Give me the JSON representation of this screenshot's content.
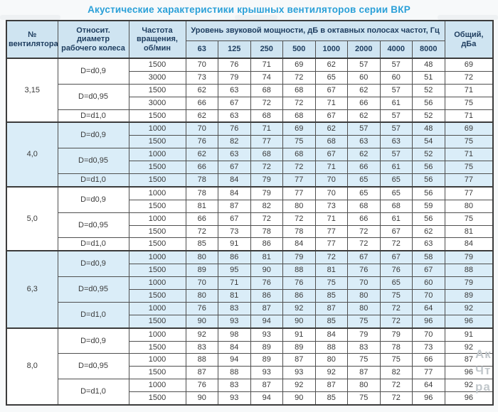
{
  "title": "Акустические характеристики крышных вентиляторов серии ВКР",
  "colors": {
    "title": "#2aa0d8",
    "header_bg": "#cfe4f1",
    "header_text": "#1d3c5e",
    "row_shaded_bg": "#daedf8",
    "row_bg": "#ffffff",
    "border": "#4f4f4f",
    "outer_border": "#3b3b3b",
    "text": "#3a3a3a",
    "page_bg": "#f7f9fa",
    "watermark": "#c2c8cc"
  },
  "table": {
    "headers": {
      "fan": "№ вентилятора",
      "diameter": "Относит. диаметр рабочего колеса",
      "speed": "Частота вращения, об/мин",
      "spl_group": "Уровень звуковой мощности, дБ в октавных полосах частот, Гц",
      "freqs": [
        "63",
        "125",
        "250",
        "500",
        "1000",
        "2000",
        "4000",
        "8000"
      ],
      "total": "Общий, дБа"
    },
    "groups": [
      {
        "fan": "3,15",
        "shaded": false,
        "diameters": [
          {
            "label": "D=d0,9",
            "rows": [
              {
                "speed": "1500",
                "levels": [
                  70,
                  76,
                  71,
                  69,
                  62,
                  57,
                  57,
                  48
                ],
                "total": 69
              },
              {
                "speed": "3000",
                "levels": [
                  73,
                  79,
                  74,
                  72,
                  65,
                  60,
                  60,
                  51
                ],
                "total": 72
              }
            ]
          },
          {
            "label": "D=d0,95",
            "rows": [
              {
                "speed": "1500",
                "levels": [
                  62,
                  63,
                  68,
                  68,
                  67,
                  62,
                  57,
                  52
                ],
                "total": 71
              },
              {
                "speed": "3000",
                "levels": [
                  66,
                  67,
                  72,
                  72,
                  71,
                  66,
                  61,
                  56
                ],
                "total": 75
              }
            ]
          },
          {
            "label": "D=d1,0",
            "rows": [
              {
                "speed": "1500",
                "levels": [
                  62,
                  63,
                  68,
                  68,
                  67,
                  62,
                  57,
                  52
                ],
                "total": 71
              }
            ]
          }
        ]
      },
      {
        "fan": "4,0",
        "shaded": true,
        "diameters": [
          {
            "label": "D=d0,9",
            "rows": [
              {
                "speed": "1000",
                "levels": [
                  70,
                  76,
                  71,
                  69,
                  62,
                  57,
                  57,
                  48
                ],
                "total": 69
              },
              {
                "speed": "1500",
                "levels": [
                  76,
                  82,
                  77,
                  75,
                  68,
                  63,
                  63,
                  54
                ],
                "total": 75
              }
            ]
          },
          {
            "label": "D=d0,95",
            "rows": [
              {
                "speed": "1000",
                "levels": [
                  62,
                  63,
                  68,
                  68,
                  67,
                  62,
                  57,
                  52
                ],
                "total": 71
              },
              {
                "speed": "1500",
                "levels": [
                  66,
                  67,
                  72,
                  72,
                  71,
                  66,
                  61,
                  56
                ],
                "total": 75
              }
            ]
          },
          {
            "label": "D=d1,0",
            "rows": [
              {
                "speed": "1500",
                "levels": [
                  78,
                  84,
                  79,
                  77,
                  70,
                  65,
                  65,
                  56
                ],
                "total": 77
              }
            ]
          }
        ]
      },
      {
        "fan": "5,0",
        "shaded": false,
        "diameters": [
          {
            "label": "D=d0,9",
            "rows": [
              {
                "speed": "1000",
                "levels": [
                  78,
                  84,
                  79,
                  77,
                  70,
                  65,
                  65,
                  56
                ],
                "total": 77
              },
              {
                "speed": "1500",
                "levels": [
                  81,
                  87,
                  82,
                  80,
                  73,
                  68,
                  68,
                  59
                ],
                "total": 80
              }
            ]
          },
          {
            "label": "D=d0,95",
            "rows": [
              {
                "speed": "1000",
                "levels": [
                  66,
                  67,
                  72,
                  72,
                  71,
                  66,
                  61,
                  56
                ],
                "total": 75
              },
              {
                "speed": "1500",
                "levels": [
                  72,
                  73,
                  78,
                  78,
                  77,
                  72,
                  67,
                  62
                ],
                "total": 81
              }
            ]
          },
          {
            "label": "D=d1,0",
            "rows": [
              {
                "speed": "1500",
                "levels": [
                  85,
                  91,
                  86,
                  84,
                  77,
                  72,
                  72,
                  63
                ],
                "total": 84
              }
            ]
          }
        ]
      },
      {
        "fan": "6,3",
        "shaded": true,
        "diameters": [
          {
            "label": "D=d0,9",
            "rows": [
              {
                "speed": "1000",
                "levels": [
                  80,
                  86,
                  81,
                  79,
                  72,
                  67,
                  67,
                  58
                ],
                "total": 79
              },
              {
                "speed": "1500",
                "levels": [
                  89,
                  95,
                  90,
                  88,
                  81,
                  76,
                  76,
                  67
                ],
                "total": 88
              }
            ]
          },
          {
            "label": "D=d0,95",
            "rows": [
              {
                "speed": "1000",
                "levels": [
                  70,
                  71,
                  76,
                  76,
                  75,
                  70,
                  65,
                  60
                ],
                "total": 79
              },
              {
                "speed": "1500",
                "levels": [
                  80,
                  81,
                  86,
                  86,
                  85,
                  80,
                  75,
                  70
                ],
                "total": 89
              }
            ]
          },
          {
            "label": "D=d1,0",
            "rows": [
              {
                "speed": "1000",
                "levels": [
                  76,
                  83,
                  87,
                  92,
                  87,
                  80,
                  72,
                  64
                ],
                "total": 92
              },
              {
                "speed": "1500",
                "levels": [
                  90,
                  93,
                  94,
                  90,
                  85,
                  75,
                  72,
                  96
                ],
                "total": 96
              }
            ]
          }
        ]
      },
      {
        "fan": "8,0",
        "shaded": false,
        "diameters": [
          {
            "label": "D=d0,9",
            "rows": [
              {
                "speed": "1000",
                "levels": [
                  92,
                  98,
                  93,
                  91,
                  84,
                  79,
                  79,
                  70
                ],
                "total": 91
              },
              {
                "speed": "1500",
                "levels": [
                  83,
                  84,
                  89,
                  89,
                  88,
                  83,
                  78,
                  73
                ],
                "total": 92
              }
            ]
          },
          {
            "label": "D=d0,95",
            "rows": [
              {
                "speed": "1000",
                "levels": [
                  88,
                  94,
                  89,
                  87,
                  80,
                  75,
                  75,
                  66
                ],
                "total": 87
              },
              {
                "speed": "1500",
                "levels": [
                  87,
                  88,
                  93,
                  93,
                  92,
                  87,
                  82,
                  77
                ],
                "total": 96
              }
            ]
          },
          {
            "label": "D=d1,0",
            "rows": [
              {
                "speed": "1000",
                "levels": [
                  76,
                  83,
                  87,
                  92,
                  87,
                  80,
                  72,
                  64
                ],
                "total": 92
              },
              {
                "speed": "1500",
                "levels": [
                  90,
                  93,
                  94,
                  90,
                  85,
                  75,
                  72,
                  96
                ],
                "total": 96
              }
            ]
          }
        ]
      }
    ]
  },
  "watermark_fragments": {
    "line1": "Ак",
    "line2": "Чт",
    "line3": "ра"
  }
}
